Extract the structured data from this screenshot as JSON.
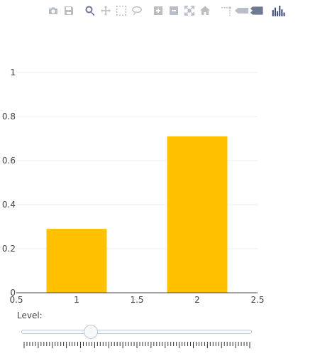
{
  "toolbar": {
    "buttons": [
      {
        "icon": "camera-icon",
        "label": "Download plot as a png"
      },
      {
        "icon": "save-icon",
        "label": "Save"
      },
      {
        "icon": "zoom-icon",
        "label": "Zoom"
      },
      {
        "icon": "pan-icon",
        "label": "Pan"
      },
      {
        "icon": "box-select-icon",
        "label": "Box Select"
      },
      {
        "icon": "lasso-select-icon",
        "label": "Lasso Select"
      },
      {
        "icon": "zoom-in-icon",
        "label": "Zoom in"
      },
      {
        "icon": "zoom-out-icon",
        "label": "Zoom out"
      },
      {
        "icon": "autoscale-icon",
        "label": "Autoscale"
      },
      {
        "icon": "reset-axes-icon",
        "label": "Reset axes"
      },
      {
        "icon": "spike-lines-icon",
        "label": "Toggle Spike Lines"
      },
      {
        "icon": "hover-closest-icon",
        "label": "Show closest data on hover"
      },
      {
        "icon": "hover-compare-icon",
        "label": "Compare data on hover"
      },
      {
        "icon": "plotly-logo-icon",
        "label": "Produced with Plotly"
      }
    ],
    "active": "zoom-icon"
  },
  "colors": {
    "bar": "#ffc000",
    "grid": "#eeeeee",
    "axis": "#444444"
  },
  "chart_data": {
    "type": "bar",
    "x": [
      1,
      2
    ],
    "values": [
      0.29,
      0.71
    ],
    "bar_width": 0.5,
    "xlim": [
      0.5,
      2.5
    ],
    "ylim": [
      0,
      1
    ],
    "xticks": [
      "0.5",
      "1",
      "1.5",
      "2",
      "2.5"
    ],
    "yticks": [
      "0",
      "0.2",
      "0.4",
      "0.6",
      "0.8",
      "1"
    ],
    "grid": true,
    "title": "",
    "xlabel": "",
    "ylabel": ""
  },
  "slider": {
    "label": "Level:",
    "value_fraction": 0.3
  }
}
